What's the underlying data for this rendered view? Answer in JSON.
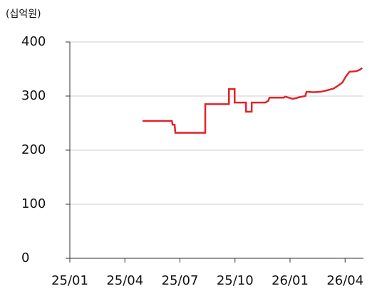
{
  "chart_data": {
    "type": "line",
    "unit_label": "(십억원)",
    "x": [
      3.96,
      5.56,
      5.6,
      5.71,
      5.75,
      7.38,
      7.38,
      8.67,
      8.67,
      8.98,
      8.98,
      9.6,
      9.6,
      9.91,
      9.91,
      10.65,
      10.81,
      10.88,
      11.66,
      11.74,
      11.93,
      12.13,
      12.32,
      12.51,
      12.83,
      12.9,
      13.29,
      13.68,
      14.07,
      14.38,
      14.65,
      14.85,
      15.04,
      15.24,
      15.62,
      15.82,
      15.93
    ],
    "series": [
      {
        "color": "#e0242b",
        "values": [
          254,
          254,
          247,
          247,
          232,
          232,
          285,
          285,
          313,
          313,
          288,
          288,
          271,
          271,
          288,
          288,
          291,
          297,
          297,
          299,
          297,
          295,
          296,
          298,
          300,
          308,
          307,
          308,
          311,
          314,
          320,
          325,
          336,
          345,
          346,
          349,
          352
        ]
      }
    ],
    "xlim": [
      0,
      16.0
    ],
    "xticks": [
      {
        "value": 0,
        "label": "25/01"
      },
      {
        "value": 3,
        "label": "25/04"
      },
      {
        "value": 6,
        "label": "25/07"
      },
      {
        "value": 9,
        "label": "25/10"
      },
      {
        "value": 12,
        "label": "26/01"
      },
      {
        "value": 15,
        "label": "26/04"
      }
    ],
    "ylim": [
      0,
      400
    ],
    "yticks": [
      0,
      100,
      200,
      300,
      400
    ],
    "grid": true
  }
}
